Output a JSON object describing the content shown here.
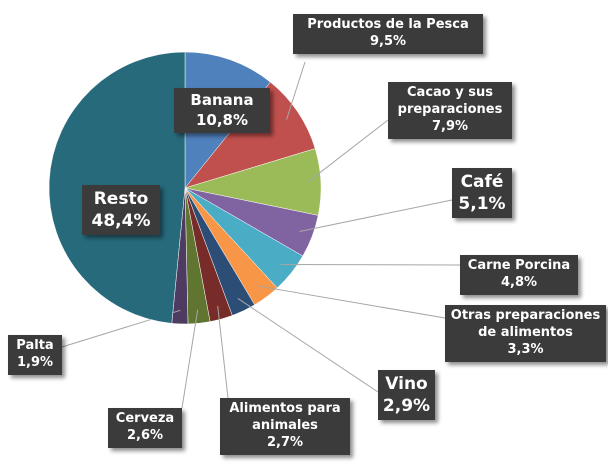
{
  "chart_data": {
    "type": "pie",
    "categories": [
      "Banana",
      "Productos de la Pesca",
      "Cacao y sus preparaciones",
      "Café",
      "Carne Porcina",
      "Otras preparaciones de alimentos",
      "Vino",
      "Alimentos para animales",
      "Cerveza",
      "Palta",
      "Resto"
    ],
    "values": [
      10.8,
      9.5,
      7.9,
      5.1,
      4.8,
      3.3,
      2.9,
      2.7,
      2.6,
      1.9,
      48.4
    ],
    "value_labels": [
      "10,8%",
      "9,5%",
      "7,9%",
      "5,1%",
      "4,8%",
      "3,3%",
      "2,9%",
      "2,7%",
      "2,6%",
      "1,9%",
      "48,4%"
    ],
    "colors": [
      "#4f81bd",
      "#c0504d",
      "#9bbb59",
      "#8064a2",
      "#4bacc6",
      "#f79646",
      "#2c4d75",
      "#772c2a",
      "#5f7530",
      "#4d3b62",
      "#276a7c"
    ]
  }
}
